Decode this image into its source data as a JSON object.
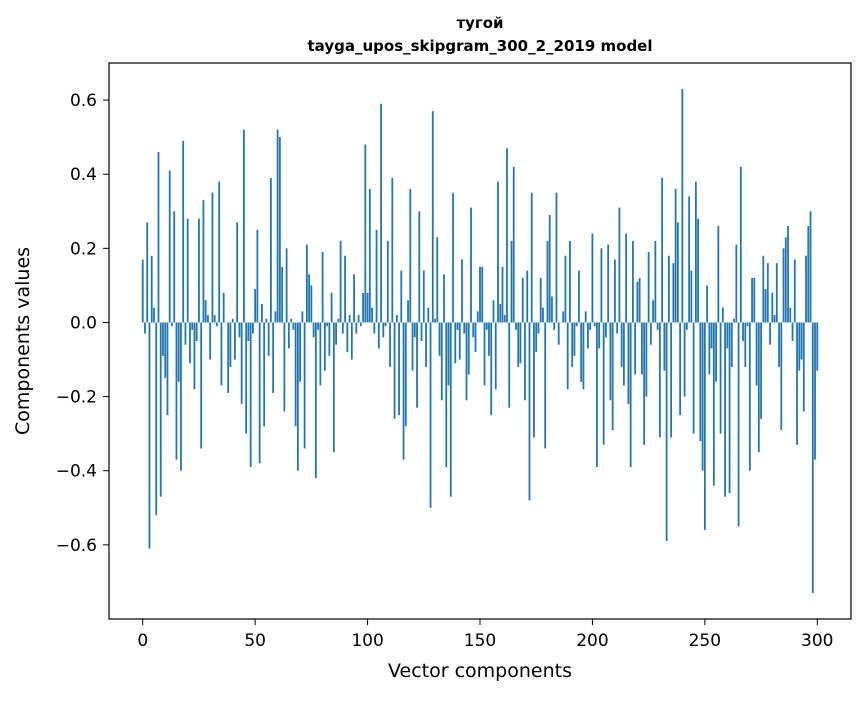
{
  "chart_data": {
    "type": "bar",
    "title": "тугой",
    "subtitle": "tayga_upos_skipgram_300_2_2019 model",
    "xlabel": "Vector components",
    "ylabel": "Components values",
    "xlim": [
      -15,
      315
    ],
    "ylim": [
      -0.8,
      0.7
    ],
    "x_ticks": [
      0,
      50,
      100,
      150,
      200,
      250,
      300
    ],
    "x_tick_labels": [
      "0",
      "50",
      "100",
      "150",
      "200",
      "250",
      "300"
    ],
    "y_ticks": [
      -0.6,
      -0.4,
      -0.2,
      0.0,
      0.2,
      0.4,
      0.6
    ],
    "y_tick_labels": [
      "−0.6",
      "−0.4",
      "−0.2",
      "0.0",
      "0.2",
      "0.4",
      "0.6"
    ],
    "bar_color": "#1f77b4",
    "values": [
      0.17,
      -0.03,
      0.27,
      -0.61,
      0.18,
      0.04,
      -0.52,
      0.46,
      -0.47,
      -0.09,
      -0.15,
      -0.25,
      0.41,
      -0.01,
      0.3,
      -0.37,
      -0.16,
      -0.4,
      0.49,
      -0.06,
      0.28,
      -0.11,
      -0.02,
      -0.18,
      -0.05,
      0.28,
      -0.34,
      0.33,
      0.06,
      0.02,
      -0.1,
      0.35,
      0.02,
      -0.01,
      0.38,
      -0.17,
      0.08,
      0.0,
      -0.19,
      -0.12,
      0.01,
      -0.1,
      0.27,
      -0.04,
      -0.22,
      0.52,
      -0.3,
      -0.05,
      -0.39,
      -0.03,
      0.09,
      0.25,
      -0.38,
      0.05,
      -0.28,
      0.01,
      -0.09,
      0.39,
      -0.19,
      0.03,
      0.52,
      0.5,
      0.15,
      -0.24,
      0.2,
      -0.07,
      0.01,
      -0.02,
      -0.28,
      -0.4,
      -0.16,
      0.03,
      -0.34,
      0.21,
      0.13,
      0.1,
      -0.04,
      -0.42,
      -0.02,
      -0.17,
      0.19,
      -0.13,
      -0.01,
      -0.09,
      0.08,
      -0.35,
      -0.06,
      0.01,
      0.22,
      -0.03,
      0.18,
      -0.08,
      0.02,
      -0.1,
      0.13,
      -0.03,
      0.02,
      -0.01,
      0.08,
      0.48,
      0.08,
      0.36,
      0.04,
      -0.03,
      0.25,
      -0.07,
      0.59,
      -0.04,
      -0.01,
      0.22,
      -0.12,
      0.39,
      -0.26,
      0.02,
      -0.25,
      0.14,
      -0.37,
      -0.28,
      0.06,
      0.36,
      -0.13,
      -0.04,
      -0.23,
      0.3,
      -0.05,
      0.14,
      -0.12,
      0.04,
      -0.5,
      0.57,
      0.01,
      0.23,
      -0.09,
      -0.21,
      0.13,
      -0.39,
      -0.17,
      -0.47,
      0.35,
      -0.11,
      -0.02,
      -0.1,
      0.17,
      -0.03,
      -0.21,
      -0.14,
      0.31,
      -0.04,
      -0.08,
      0.03,
      0.15,
      0.15,
      -0.17,
      -0.02,
      -0.09,
      -0.25,
      0.06,
      -0.18,
      0.38,
      0.05,
      0.15,
      0.02,
      0.47,
      -0.23,
      0.22,
      0.42,
      -0.02,
      -0.12,
      -0.11,
      0.12,
      -0.21,
      0.14,
      -0.48,
      0.35,
      -0.31,
      -0.08,
      -0.03,
      0.12,
      0.04,
      -0.34,
      0.22,
      0.29,
      0.07,
      -0.02,
      0.35,
      -0.06,
      0.0,
      0.03,
      0.18,
      -0.18,
      0.22,
      -0.12,
      -0.09,
      -0.01,
      0.14,
      -0.16,
      -0.18,
      0.03,
      -0.07,
      -0.02,
      0.24,
      -0.01,
      -0.39,
      -0.07,
      0.2,
      -0.33,
      -0.04,
      0.21,
      -0.21,
      -0.29,
      0.17,
      -0.03,
      0.31,
      -0.12,
      -0.17,
      0.24,
      -0.22,
      -0.39,
      0.22,
      -0.14,
      0.11,
      0.12,
      -0.14,
      -0.33,
      -0.2,
      0.19,
      -0.06,
      0.06,
      0.22,
      -0.02,
      -0.31,
      0.39,
      -0.13,
      -0.59,
      0.18,
      -0.31,
      0.16,
      0.36,
      0.27,
      -0.25,
      0.63,
      -0.2,
      -0.02,
      0.34,
      0.14,
      -0.3,
      0.38,
      0.28,
      -0.32,
      -0.4,
      -0.56,
      0.1,
      -0.14,
      -0.07,
      -0.44,
      -0.16,
      0.26,
      -0.3,
      0.04,
      -0.47,
      -0.07,
      -0.46,
      -0.12,
      0.01,
      0.21,
      -0.55,
      0.42,
      -0.05,
      -0.12,
      -0.01,
      -0.4,
      0.12,
      0.12,
      -0.17,
      -0.35,
      -0.26,
      0.18,
      0.09,
      0.16,
      -0.06,
      0.08,
      0.02,
      0.16,
      -0.12,
      -0.29,
      0.2,
      0.23,
      0.26,
      0.04,
      -0.05,
      0.17,
      -0.33,
      -0.13,
      -0.1,
      -0.24,
      0.18,
      0.26,
      0.3,
      -0.73,
      -0.37,
      -0.13
    ]
  }
}
